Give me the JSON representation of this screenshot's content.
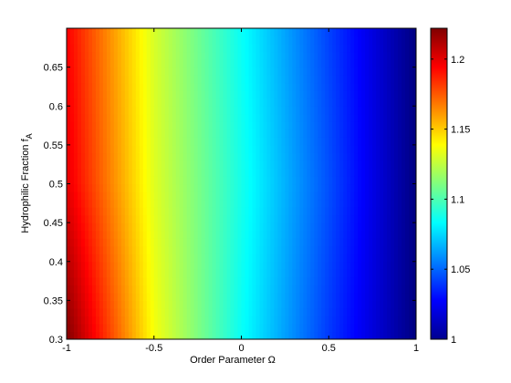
{
  "chart_data": {
    "type": "heatmap",
    "title": "",
    "xlabel": "Order Parameter  Ω",
    "ylabel_main": "Hydrophilic Fraction  f",
    "ylabel_sub": "A",
    "xlim": [
      -1,
      1
    ],
    "ylim": [
      0.3,
      0.7
    ],
    "x_ticks": [
      -1,
      -0.5,
      0,
      0.5,
      1
    ],
    "x_tick_labels": [
      "-1",
      "-0.5",
      "0",
      "0.5",
      "1"
    ],
    "y_ticks": [
      0.3,
      0.35,
      0.4,
      0.45,
      0.5,
      0.55,
      0.6,
      0.65
    ],
    "y_tick_labels": [
      "0.3",
      "0.35",
      "0.4",
      "0.45",
      "0.5",
      "0.55",
      "0.6",
      "0.65"
    ],
    "colorbar": {
      "range": [
        1.0,
        1.222
      ],
      "ticks": [
        1,
        1.05,
        1.1,
        1.15,
        1.2
      ],
      "tick_labels": [
        "1",
        "1.05",
        "1.1",
        "1.15",
        "1.2"
      ],
      "colormap": "jet"
    },
    "field_samples": {
      "omega": [
        -1,
        -0.5,
        0,
        0.5,
        1
      ],
      "f_A": [
        0.3,
        0.5,
        0.7
      ],
      "values": [
        [
          1.222,
          1.137,
          1.085,
          1.04,
          1.0
        ],
        [
          1.2,
          1.132,
          1.088,
          1.045,
          1.0
        ],
        [
          1.195,
          1.13,
          1.085,
          1.042,
          1.0
        ]
      ]
    },
    "grid": false,
    "legend": "none"
  }
}
